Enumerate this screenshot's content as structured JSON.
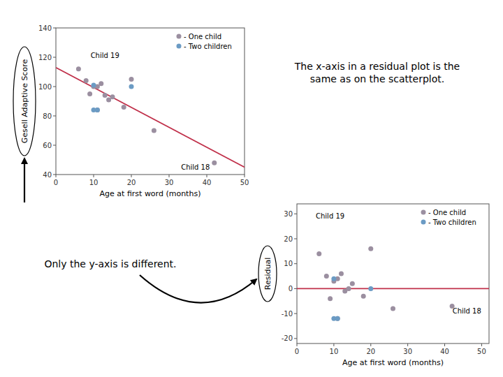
{
  "chart_data": [
    {
      "type": "scatter",
      "x_label": "Age at first word (months)",
      "y_label": "Gesell Adaptive Score",
      "series": [
        {
          "name": "- One child",
          "color": "#9b8fa0",
          "marker": "circle",
          "x": [
            6,
            8,
            9,
            10,
            11,
            11,
            12,
            13,
            14,
            15,
            18,
            20,
            26,
            42
          ],
          "values": [
            112,
            104,
            95,
            100,
            100,
            84,
            102,
            94,
            91,
            93,
            86,
            105,
            70,
            48
          ]
        },
        {
          "name": "- Two children",
          "color": "#6b9bc4",
          "marker": "circle",
          "x": [
            10,
            10,
            11,
            20
          ],
          "values": [
            101,
            84,
            84,
            100
          ]
        },
        {
          "type": "line",
          "color": "#c0304a",
          "x": [
            0,
            50
          ],
          "values": [
            113,
            45
          ]
        }
      ],
      "xlim": [
        0,
        50
      ],
      "xticks": [
        0,
        10,
        20,
        30,
        40,
        50
      ],
      "ylim": [
        40,
        140
      ],
      "yticks": [
        40,
        60,
        80,
        100,
        120,
        140
      ],
      "legend": "upper right",
      "annotations": [
        {
          "text": "Child 19",
          "x": 13,
          "y": 123
        },
        {
          "text": "Child 18",
          "x": 37,
          "y": 47
        }
      ]
    },
    {
      "type": "scatter",
      "x_label": "Age at first word (months)",
      "y_label": "Residual",
      "series": [
        {
          "name": "- One child",
          "color": "#9b8fa0",
          "marker": "circle",
          "x": [
            6,
            8,
            9,
            10,
            11,
            11,
            12,
            13,
            14,
            15,
            18,
            20,
            26,
            42
          ],
          "values": [
            14,
            5,
            -4,
            3,
            4,
            -12,
            6,
            -1,
            0,
            2,
            -3,
            16,
            -8,
            -7
          ]
        },
        {
          "name": "- Two children",
          "color": "#6b9bc4",
          "marker": "circle",
          "x": [
            10,
            10,
            11,
            20
          ],
          "values": [
            4,
            -12,
            -12,
            0
          ]
        },
        {
          "type": "hline",
          "color": "#c0304a",
          "values": [
            0
          ]
        }
      ],
      "xlim": [
        0,
        52
      ],
      "xticks": [
        0,
        10,
        20,
        30,
        40,
        50
      ],
      "ylim": [
        -22,
        34
      ],
      "yticks": [
        -20,
        -10,
        0,
        10,
        20,
        30
      ],
      "legend": "upper right",
      "annotations": [
        {
          "text": "Child 19",
          "x": 9,
          "y": 30
        },
        {
          "text": "Child 18",
          "x": 46,
          "y": -8
        }
      ],
      "notes": [
        "The x-axis in a residual plot is the\nsame as on the scatterplot.",
        "Only the y-axis is different."
      ]
    }
  ]
}
